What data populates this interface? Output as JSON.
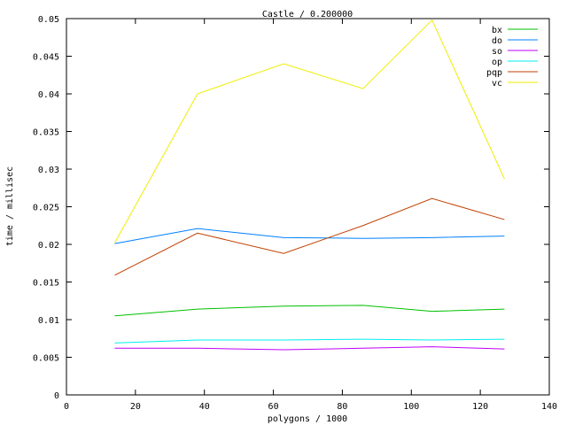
{
  "chart_data": {
    "type": "line",
    "title": "Castle / 0.200000",
    "xlabel": "polygons / 1000",
    "ylabel": "time / millisec",
    "xlim": [
      0,
      140
    ],
    "ylim": [
      0,
      0.05
    ],
    "xticks": [
      0,
      20,
      40,
      60,
      80,
      100,
      120,
      140
    ],
    "yticks": [
      0,
      0.005,
      0.01,
      0.015,
      0.02,
      0.025,
      0.03,
      0.035,
      0.04,
      0.045,
      0.05
    ],
    "ytick_labels": [
      "0",
      "0.005",
      "0.01",
      "0.015",
      "0.02",
      "0.025",
      "0.03",
      "0.035",
      "0.04",
      "0.045",
      "0.05"
    ],
    "grid": false,
    "legend_position": "top-right",
    "x": [
      14,
      38,
      63,
      86,
      106,
      127
    ],
    "series": [
      {
        "name": "bx",
        "color": "#00c000",
        "values": [
          0.0105,
          0.0114,
          0.0118,
          0.0119,
          0.0111,
          0.0114
        ]
      },
      {
        "name": "do",
        "color": "#0080ff",
        "values": [
          0.0201,
          0.0221,
          0.0209,
          0.0208,
          0.0209,
          0.0211
        ]
      },
      {
        "name": "so",
        "color": "#c000ff",
        "values": [
          0.0062,
          0.0062,
          0.006,
          0.0062,
          0.0064,
          0.0061
        ]
      },
      {
        "name": "op",
        "color": "#00eeee",
        "values": [
          0.0069,
          0.0073,
          0.0073,
          0.0074,
          0.0073,
          0.0074
        ]
      },
      {
        "name": "pqp",
        "color": "#c04000",
        "values": [
          0.0159,
          0.0215,
          0.0188,
          0.0225,
          0.0261,
          0.0233
        ]
      },
      {
        "name": "vc",
        "color": "#eeee00",
        "values": [
          0.0202,
          0.04,
          0.044,
          0.0407,
          0.0498,
          0.0287
        ]
      }
    ]
  }
}
